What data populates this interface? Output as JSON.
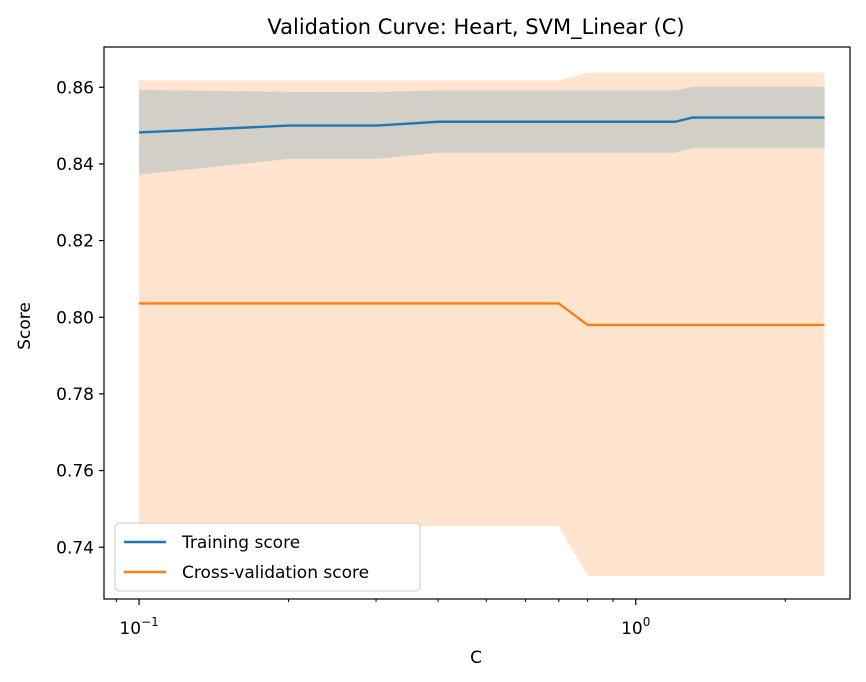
{
  "chart_data": {
    "type": "line",
    "title": "Validation Curve: Heart, SVM_Linear (C)",
    "xlabel": "C",
    "ylabel": "Score",
    "xscale": "log",
    "xlim": [
      0.085,
      2.7
    ],
    "ylim": [
      0.7265,
      0.8705
    ],
    "x_ticks": [
      {
        "value": 0.1,
        "base": "10",
        "exp": "−1"
      },
      {
        "value": 1,
        "base": "10",
        "exp": "0"
      }
    ],
    "y_ticks": [
      {
        "value": 0.74,
        "label": "0.74"
      },
      {
        "value": 0.76,
        "label": "0.76"
      },
      {
        "value": 0.78,
        "label": "0.78"
      },
      {
        "value": 0.8,
        "label": "0.80"
      },
      {
        "value": 0.82,
        "label": "0.82"
      },
      {
        "value": 0.84,
        "label": "0.84"
      },
      {
        "value": 0.86,
        "label": "0.86"
      }
    ],
    "x": [
      0.1,
      0.2,
      0.3,
      0.4,
      0.5,
      0.6,
      0.7,
      0.8,
      0.9,
      1.0,
      1.1,
      1.2,
      1.3,
      1.4,
      1.5,
      1.6,
      1.7,
      1.8,
      1.9,
      2.0,
      2.1,
      2.2,
      2.3,
      2.4
    ],
    "series": [
      {
        "name": "Training score",
        "color": "#1f77b4",
        "band_color": "#1f77b4",
        "mean": [
          0.8482,
          0.85,
          0.85,
          0.851,
          0.851,
          0.851,
          0.851,
          0.851,
          0.851,
          0.851,
          0.851,
          0.851,
          0.8521,
          0.8521,
          0.8521,
          0.8521,
          0.8521,
          0.8521,
          0.8521,
          0.8521,
          0.8521,
          0.8521,
          0.8521,
          0.8521
        ],
        "lower": [
          0.8372,
          0.8413,
          0.8413,
          0.8429,
          0.8429,
          0.8429,
          0.8429,
          0.8429,
          0.8429,
          0.8429,
          0.8429,
          0.8429,
          0.8441,
          0.8441,
          0.8441,
          0.8441,
          0.8441,
          0.8441,
          0.8441,
          0.8441,
          0.8441,
          0.8441,
          0.8441,
          0.8441
        ],
        "upper": [
          0.8593,
          0.8588,
          0.8588,
          0.8592,
          0.8592,
          0.8592,
          0.8592,
          0.8592,
          0.8592,
          0.8592,
          0.8592,
          0.8592,
          0.8601,
          0.8601,
          0.8601,
          0.8601,
          0.8601,
          0.8601,
          0.8601,
          0.8601,
          0.8601,
          0.8601,
          0.8601,
          0.8601
        ]
      },
      {
        "name": "Cross-validation score",
        "color": "#ff7f0e",
        "band_color": "#ff7f0e",
        "mean": [
          0.8036,
          0.8036,
          0.8036,
          0.8036,
          0.8036,
          0.8036,
          0.8036,
          0.798,
          0.798,
          0.798,
          0.798,
          0.798,
          0.798,
          0.798,
          0.798,
          0.798,
          0.798,
          0.798,
          0.798,
          0.798,
          0.798,
          0.798,
          0.798,
          0.798
        ],
        "lower": [
          0.7455,
          0.7455,
          0.7455,
          0.7455,
          0.7455,
          0.7455,
          0.7455,
          0.7325,
          0.7325,
          0.7325,
          0.7325,
          0.7325,
          0.7325,
          0.7325,
          0.7325,
          0.7325,
          0.7325,
          0.7325,
          0.7325,
          0.7325,
          0.7325,
          0.7325,
          0.7325,
          0.7325
        ],
        "upper": [
          0.8618,
          0.8618,
          0.8618,
          0.8618,
          0.8618,
          0.8618,
          0.8618,
          0.8638,
          0.8638,
          0.8638,
          0.8638,
          0.8638,
          0.8638,
          0.8638,
          0.8638,
          0.8638,
          0.8638,
          0.8638,
          0.8638,
          0.8638,
          0.8638,
          0.8638,
          0.8638,
          0.8638
        ]
      }
    ],
    "grid": false,
    "legend": {
      "position": "lower-left"
    }
  }
}
